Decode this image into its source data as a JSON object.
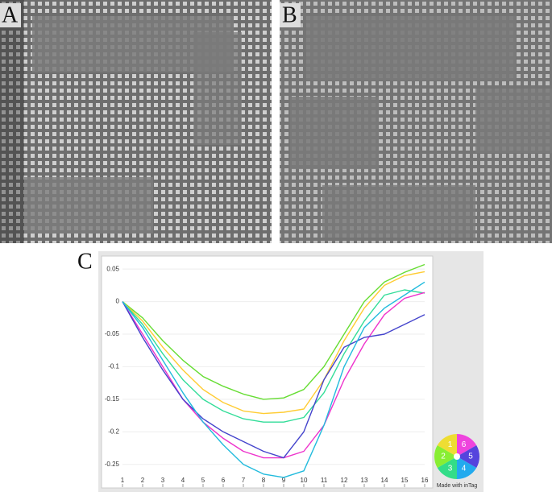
{
  "panels": {
    "a": "A",
    "b": "B"
  },
  "chart_data": {
    "type": "line",
    "label": "C",
    "x": [
      1,
      2,
      3,
      4,
      5,
      6,
      7,
      8,
      9,
      10,
      11,
      12,
      13,
      14,
      15,
      16
    ],
    "xlim": [
      1,
      16
    ],
    "xticks": [
      1,
      2,
      3,
      4,
      5,
      6,
      7,
      8,
      9,
      10,
      11,
      12,
      13,
      14,
      15,
      16
    ],
    "ylim": [
      -0.285,
      0.07
    ],
    "yticks": [
      0.05,
      0,
      -0.05,
      -0.1,
      -0.15,
      -0.2,
      -0.25
    ],
    "grid": true,
    "series": [
      {
        "color": "#66dd33",
        "values": [
          0,
          -0.025,
          -0.06,
          -0.09,
          -0.115,
          -0.13,
          -0.142,
          -0.15,
          -0.148,
          -0.135,
          -0.1,
          -0.05,
          0,
          0.03,
          0.045,
          0.057
        ]
      },
      {
        "color": "#ffcc33",
        "values": [
          0,
          -0.03,
          -0.07,
          -0.105,
          -0.135,
          -0.155,
          -0.168,
          -0.172,
          -0.17,
          -0.165,
          -0.12,
          -0.06,
          -0.01,
          0.025,
          0.04,
          0.046
        ]
      },
      {
        "color": "#33dd99",
        "values": [
          0,
          -0.035,
          -0.08,
          -0.12,
          -0.15,
          -0.168,
          -0.18,
          -0.185,
          -0.185,
          -0.178,
          -0.14,
          -0.08,
          -0.03,
          0.01,
          0.018,
          0.013
        ]
      },
      {
        "color": "#ee33cc",
        "values": [
          0,
          -0.05,
          -0.1,
          -0.15,
          -0.185,
          -0.21,
          -0.23,
          -0.24,
          -0.24,
          -0.23,
          -0.19,
          -0.12,
          -0.065,
          -0.02,
          0.005,
          0.014
        ]
      },
      {
        "color": "#4444cc",
        "values": [
          0,
          -0.055,
          -0.105,
          -0.15,
          -0.18,
          -0.2,
          -0.215,
          -0.23,
          -0.24,
          -0.2,
          -0.12,
          -0.07,
          -0.055,
          -0.05,
          -0.035,
          -0.02
        ]
      },
      {
        "color": "#22bbdd",
        "values": [
          0,
          -0.04,
          -0.09,
          -0.14,
          -0.185,
          -0.22,
          -0.25,
          -0.265,
          -0.27,
          -0.26,
          -0.19,
          -0.1,
          -0.04,
          -0.01,
          0.01,
          0.03
        ]
      }
    ]
  },
  "logo": {
    "text": "Made with inTag",
    "segments": [
      "6",
      "5",
      "4",
      "3",
      "2",
      "1"
    ]
  }
}
